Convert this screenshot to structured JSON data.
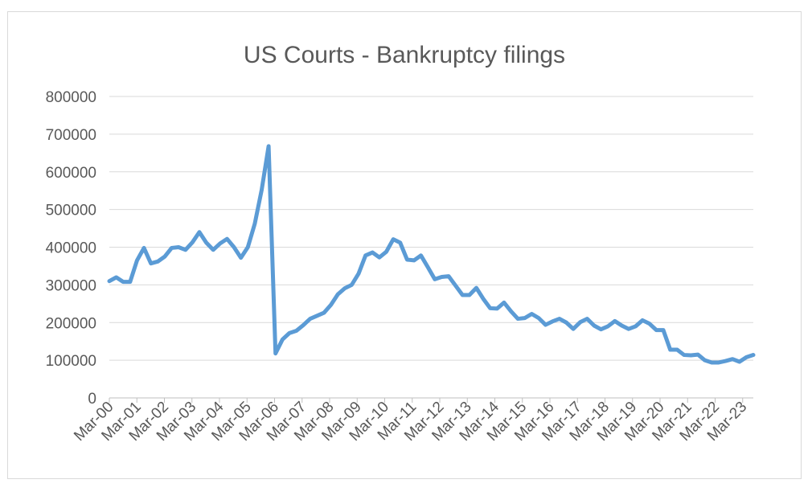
{
  "chart_data": {
    "type": "line",
    "title": "US Courts - Bankruptcy filings",
    "xlabel": "",
    "ylabel": "",
    "ylim": [
      0,
      800000
    ],
    "yticks": [
      0,
      100000,
      200000,
      300000,
      400000,
      500000,
      600000,
      700000,
      800000
    ],
    "xticks": [
      "Mar-00",
      "Mar-01",
      "Mar-02",
      "Mar-03",
      "Mar-04",
      "Mar-05",
      "Mar-06",
      "Mar-07",
      "Mar-08",
      "Mar-09",
      "Mar-10",
      "Mar-11",
      "Mar-12",
      "Mar-13",
      "Mar-14",
      "Mar-15",
      "Mar-16",
      "Mar-17",
      "Mar-18",
      "Mar-19",
      "Mar-20",
      "Mar-21",
      "Mar-22",
      "Mar-23"
    ],
    "grid": true,
    "legend": "none",
    "line_color": "#5b9bd5",
    "series": [
      {
        "values": [
          310000,
          320000,
          308000,
          308000,
          365000,
          398000,
          357000,
          362000,
          375000,
          398000,
          400000,
          393000,
          413000,
          440000,
          412000,
          393000,
          410000,
          422000,
          400000,
          372000,
          400000,
          462000,
          552000,
          668000,
          118000,
          155000,
          172000,
          178000,
          193000,
          210000,
          218000,
          226000,
          247000,
          275000,
          291000,
          300000,
          330000,
          378000,
          386000,
          373000,
          388000,
          421000,
          412000,
          367000,
          365000,
          378000,
          347000,
          315000,
          321000,
          323000,
          298000,
          273000,
          273000,
          292000,
          263000,
          238000,
          237000,
          253000,
          230000,
          210000,
          212000,
          223000,
          212000,
          194000,
          203000,
          210000,
          200000,
          183000,
          201000,
          210000,
          192000,
          182000,
          190000,
          204000,
          192000,
          183000,
          190000,
          206000,
          197000,
          180000,
          180000,
          128000,
          128000,
          114000,
          113000,
          115000,
          100000,
          94000,
          94000,
          98000,
          103000,
          96000,
          108000,
          114000
        ]
      }
    ]
  }
}
